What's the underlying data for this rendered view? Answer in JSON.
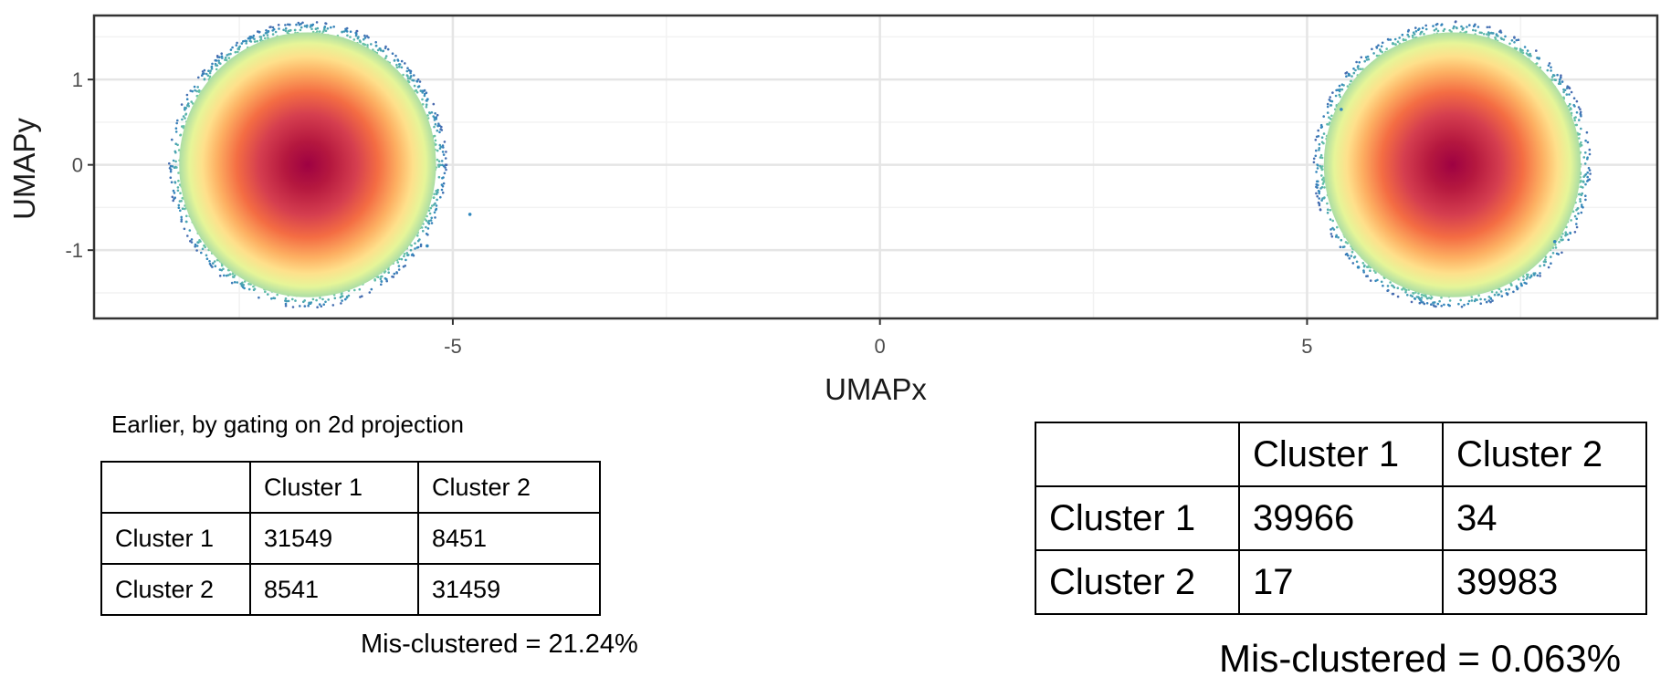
{
  "chart_data": {
    "type": "scatter",
    "xlabel": "UMAPx",
    "ylabel": "UMAPy",
    "xticks": [
      -5,
      0,
      5
    ],
    "yticks": [
      -1,
      0,
      1
    ],
    "xlim": [
      -9.2,
      9.1
    ],
    "ylim": [
      -1.8,
      1.75
    ],
    "grid": true,
    "colormap": [
      "#5e4fa2",
      "#3288bd",
      "#66c2a5",
      "#abdda4",
      "#e6f598",
      "#fee08b",
      "#fdae61",
      "#f46d43",
      "#d53e4f",
      "#9e0142"
    ],
    "clusters": [
      {
        "center": [
          -6.7,
          0.0
        ],
        "radius_x": 1.55,
        "radius_y": 1.6
      },
      {
        "center": [
          6.7,
          0.0
        ],
        "radius_x": 1.55,
        "radius_y": 1.6
      }
    ],
    "outliers": [
      [
        -4.8,
        -0.58
      ],
      [
        -5.3,
        -0.95
      ],
      [
        5.4,
        0.65
      ],
      [
        7.9,
        -0.9
      ],
      [
        5.6,
        -1.2
      ]
    ]
  },
  "left_panel": {
    "caption": "Earlier, by gating on 2d projection",
    "header": [
      "",
      "Cluster 1",
      "Cluster 2"
    ],
    "rows": [
      [
        "Cluster 1",
        "31549",
        "8451"
      ],
      [
        "Cluster 2",
        "8541",
        "31459"
      ]
    ],
    "footer": "Mis-clustered = 21.24%"
  },
  "right_panel": {
    "header": [
      "",
      "Cluster 1",
      "Cluster 2"
    ],
    "rows": [
      [
        "Cluster 1",
        "39966",
        "34"
      ],
      [
        "Cluster 2",
        "17",
        "39983"
      ]
    ],
    "footer": "Mis-clustered = 0.063%"
  }
}
